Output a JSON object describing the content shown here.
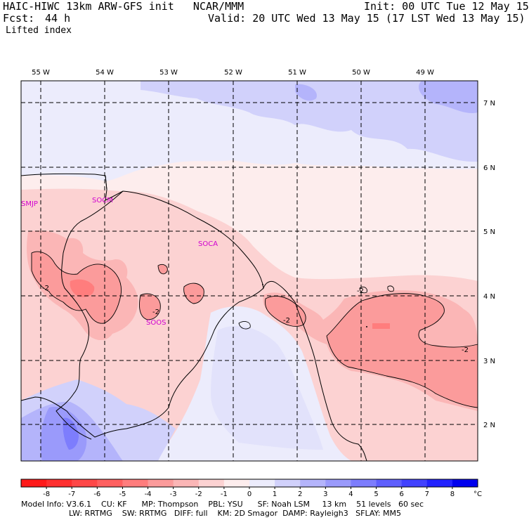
{
  "header": {
    "model_title": "HAIC-HIWC 13km ARW-GFS init   NCAR/MMM",
    "init": "Init: 00 UTC Tue 12 May 15",
    "fcst_label": "Fcst:",
    "fcst_value": "44 h",
    "valid": "Valid: 20 UTC Wed 13 May 15 (17 LST Wed 13 May 15)",
    "field": "Lifted index"
  },
  "map": {
    "lon_labels": [
      "55 W",
      "54 W",
      "53 W",
      "52 W",
      "51 W",
      "50 W",
      "49 W"
    ],
    "lat_labels": [
      "7 N",
      "6 N",
      "5 N",
      "4 N",
      "3 N",
      "2 N"
    ],
    "stations": [
      "SMJP",
      "SOCM",
      "SOCA",
      "SOOS"
    ],
    "contour_labels": [
      "-2",
      "-2",
      "-2",
      "-2",
      "-2"
    ]
  },
  "colorbar": {
    "ticks": [
      "-8",
      "-7",
      "-6",
      "-5",
      "-4",
      "-3",
      "-2",
      "-1",
      "0",
      "1",
      "2",
      "3",
      "4",
      "5",
      "6",
      "7",
      "8"
    ],
    "unit": "°C",
    "colors": [
      "#ff1a1a",
      "#ff3030",
      "#ff4848",
      "#ff6060",
      "#ff7d7d",
      "#fb9b9b",
      "#fbb6b6",
      "#fcd2d2",
      "#fdeded",
      "#ececfc",
      "#d1d1fb",
      "#b4b4fb",
      "#9a9afb",
      "#7d7dfd",
      "#5f5ffd",
      "#4242ff",
      "#2222ff",
      "#0000ee"
    ]
  },
  "footer": {
    "line1": "Model Info: V3.6.1    CU: KF      MP: Thompson    PBL: YSU      SF: Noah LSM     13 km    51 levels   60 sec",
    "line2": "LW: RRTMG    SW: RRTMG   DIFF: full    KM: 2D Smagor  DAMP: Rayleigh3   SFLAY: MM5"
  }
}
